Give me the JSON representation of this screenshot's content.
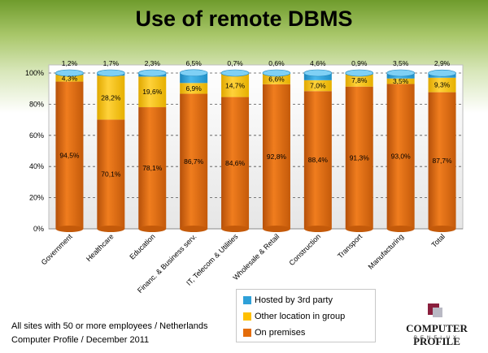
{
  "title": "Use of remote DBMS",
  "chart_data": {
    "type": "bar",
    "stacked": true,
    "title": "Use of remote DBMS",
    "categories": [
      "Government",
      "Healthcare",
      "Education",
      "Financ. & Business serv.",
      "IT, Telecom & Utilities",
      "Wholesale & Retail",
      "Construction",
      "Transport",
      "Manufacturing",
      "Total"
    ],
    "series": [
      {
        "name": "On premises",
        "color": "#e46c0a",
        "values": [
          94.5,
          70.1,
          78.1,
          86.7,
          84.6,
          92.8,
          88.4,
          91.3,
          93.0,
          87.7
        ],
        "labels": [
          "94,5%",
          "70,1%",
          "78,1%",
          "86,7%",
          "84,6%",
          "92,8%",
          "88,4%",
          "91,3%",
          "93,0%",
          "87,7%"
        ]
      },
      {
        "name": "Other location in group",
        "color": "#ffc000",
        "values": [
          4.3,
          28.2,
          19.6,
          6.9,
          14.7,
          6.6,
          7.0,
          7.8,
          3.5,
          9.3
        ],
        "labels": [
          "4,3%",
          "28,2%",
          "19,6%",
          "6,9%",
          "14,7%",
          "6,6%",
          "7,0%",
          "7,8%",
          "3,5%",
          "9,3%"
        ]
      },
      {
        "name": "Hosted by 3rd party",
        "color": "#2ea0d8",
        "values": [
          1.2,
          1.7,
          2.3,
          6.5,
          0.7,
          0.6,
          4.6,
          0.9,
          3.5,
          2.9
        ],
        "labels": [
          "1,2%",
          "1,7%",
          "2,3%",
          "6,5%",
          "0,7%",
          "0,6%",
          "4,6%",
          "0,9%",
          "3,5%",
          "2,9%"
        ]
      }
    ],
    "yticks": [
      "0%",
      "20%",
      "40%",
      "60%",
      "80%",
      "100%"
    ],
    "ylim": [
      0,
      100
    ],
    "grid": true,
    "legend": "bottom"
  },
  "legend": [
    {
      "label": "Hosted by 3rd party",
      "color": "#2ea0d8"
    },
    {
      "label": "Other location in group",
      "color": "#ffc000"
    },
    {
      "label": "On premises",
      "color": "#e46c0a"
    }
  ],
  "footnote": {
    "line1": "All sites with 50 or more employees / Netherlands",
    "line2": "Computer Profile / December 2011"
  },
  "logo": {
    "name": "COMPUTER PROFILE",
    "sub": "BENELUX"
  }
}
